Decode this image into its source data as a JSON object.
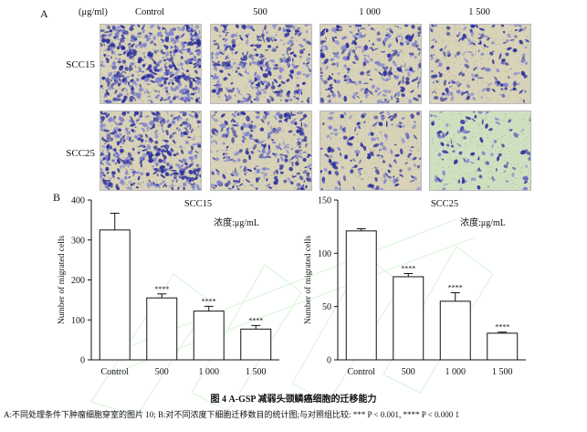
{
  "panel_a": {
    "label": "A",
    "unit_label": "(μg/ml)",
    "columns": [
      "Control",
      "500",
      "1 000",
      "1 500"
    ],
    "rows": [
      "SCC15",
      "SCC25"
    ],
    "density": [
      [
        0.95,
        0.55,
        0.45,
        0.25
      ],
      [
        0.75,
        0.45,
        0.25,
        0.12
      ]
    ]
  },
  "panel_b": {
    "label": "B"
  },
  "chart_data": [
    {
      "type": "bar",
      "title": "SCC15",
      "subtitle": "浓度:μg/mL",
      "ylabel": "Number of migrated cells",
      "xlabel": "",
      "categories": [
        "Control",
        "500",
        "1 000",
        "1 500"
      ],
      "values": [
        325,
        155,
        122,
        77
      ],
      "errors": [
        42,
        10,
        12,
        9
      ],
      "significance": [
        "",
        "****",
        "****",
        "****"
      ],
      "ylim": [
        0,
        400
      ],
      "yticks": [
        0,
        100,
        200,
        300,
        400
      ]
    },
    {
      "type": "bar",
      "title": "SCC25",
      "subtitle": "浓度:μg/mL",
      "ylabel": "Number of migrated cells",
      "xlabel": "",
      "categories": [
        "Control",
        "500",
        "1 000",
        "1 500"
      ],
      "values": [
        121,
        78,
        55,
        25
      ],
      "errors": [
        2,
        3,
        8,
        1
      ],
      "significance": [
        "",
        "****",
        "****",
        "****"
      ],
      "ylim": [
        0,
        150
      ],
      "yticks": [
        0,
        50,
        100,
        150
      ]
    }
  ],
  "caption": {
    "title": "图 4   A-GSP 减弱头颈鳞癌细胞的迁移能力",
    "note": "A:不同处理条件下肿瘤细胞穿室的图片 10; B:对不同浓度下细胞迁移数目的统计图;与对照组比较: *** P < 0.001, **** P < 0.000 1"
  },
  "colors": {
    "stain_dark": "#2b2f9c",
    "stain_light": "#7b7fd0",
    "membrane": "#d8d2b8",
    "membrane_tint": "#cfe0c0"
  }
}
